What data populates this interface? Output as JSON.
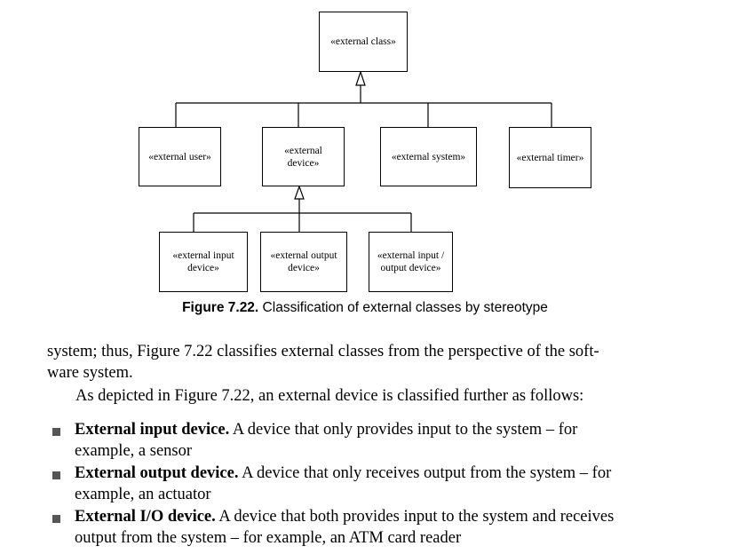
{
  "diagram": {
    "root": "«external class»",
    "children": {
      "user": "«external user»",
      "device_line1": "«external",
      "device_line2": "device»",
      "system": "«external system»",
      "timer": "«external timer»"
    },
    "device_children": {
      "input_line1": "«external input",
      "input_line2": "device»",
      "output_line1": "«external output",
      "output_line2": "device»",
      "io_line1": "«external input /",
      "io_line2": "output device»"
    }
  },
  "caption": {
    "label": "Figure 7.22.",
    "text": " Classification of external classes by stereotype"
  },
  "body": {
    "line1": "system; thus, Figure 7.22 classifies external classes from the perspective of the soft-",
    "line2": "ware system.",
    "line3": "As depicted in Figure 7.22, an external device is classified further as follows:"
  },
  "bullets": [
    {
      "term": "External input device.",
      "rest": " A device that only provides input to the system – for",
      "cont": "example, a sensor"
    },
    {
      "term": "External output device.",
      "rest": " A device that only receives output from the system – for",
      "cont": "example, an actuator"
    },
    {
      "term": "External I/O device.",
      "rest": " A device that both provides input to the system and receives",
      "cont": "output from the system – for example, an ATM card reader"
    }
  ]
}
